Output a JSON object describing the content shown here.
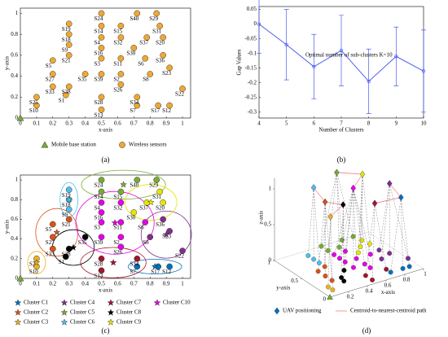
{
  "chart_data": [
    {
      "type": "scatter",
      "caption": "(a)",
      "xlabel": "x-axis",
      "ylabel": "y-axis",
      "xlim": [
        0,
        1.05
      ],
      "ylim": [
        0,
        1.05
      ],
      "xticks": [
        0,
        0.1,
        0.2,
        0.3,
        0.4,
        0.5,
        0.6,
        0.7,
        0.8,
        0.9,
        1
      ],
      "yticks": [
        0,
        0.2,
        0.4,
        0.6,
        0.8,
        1
      ],
      "series": [
        {
          "name": "Mobile base station",
          "color": "#77ac30",
          "marker": "triangle",
          "x": [
            0
          ],
          "y": [
            0
          ]
        },
        {
          "name": "Wireless sensors",
          "color": "#f0a830",
          "marker": "circle",
          "x": [
            0.28,
            0.62,
            0.5,
            0.5,
            0.2,
            0.77,
            0.72,
            0.8,
            0.3,
            0.1,
            0.62,
            0.92,
            0.5,
            0.5,
            0.62,
            0.5,
            0.85,
            0.3,
            0.3,
            0.88,
            0.3,
            1.0,
            0.92,
            0.5,
            0.1,
            0.62,
            0.2,
            0.5,
            0.84,
            0.7,
            0.86,
            0.62,
            0.2,
            0.72,
            0.4,
            0.88,
            0.78,
            0.3,
            0.5,
            0.72
          ],
          "y": [
            0.22,
            0.42,
            0.57,
            0.77,
            0.55,
            0.57,
            0.12,
            0.42,
            0.7,
            0.12,
            0.57,
            0.12,
            0.08,
            0.88,
            0.88,
            0.67,
            0.12,
            0.8,
            0.9,
            0.77,
            0.6,
            0.28,
            0.48,
            1.0,
            0.2,
            0.32,
            0.42,
            0.2,
            1.0,
            0.67,
            0.88,
            0.77,
            0.3,
            0.2,
            0.42,
            0.6,
            0.77,
            0.3,
            0.42,
            1.0
          ],
          "labels": [
            "S1",
            "S2",
            "S3",
            "S4",
            "S5",
            "S6",
            "S7",
            "S8",
            "S9",
            "S10",
            "S11",
            "S12",
            "S13",
            "S14",
            "S15",
            "S16",
            "S17",
            "S18",
            "S19",
            "S20",
            "S21",
            "S22",
            "S23",
            "S24",
            "S25",
            "S26",
            "S27",
            "S28",
            "S29",
            "S30",
            "S31",
            "S32",
            "S33",
            "S34",
            "S35",
            "S36",
            "S37",
            "S38",
            "S39",
            "S40"
          ]
        }
      ]
    },
    {
      "type": "errorbar",
      "caption": "(b)",
      "xlabel": "Number of Clusters",
      "ylabel": "Gap Values",
      "annotation": "Optimal number of sub-clusters K=10",
      "color": "#4a5cf0",
      "xlim": [
        4,
        10
      ],
      "ylim": [
        -0.32,
        0.06
      ],
      "xticks": [
        4,
        5,
        6,
        7,
        8,
        9,
        10
      ],
      "yticks": [
        -0.3,
        -0.25,
        -0.2,
        -0.15,
        -0.1,
        -0.05,
        0,
        0.05
      ],
      "x": [
        4,
        5,
        6,
        7,
        8,
        9,
        10
      ],
      "values": [
        0,
        -0.07,
        -0.145,
        -0.09,
        -0.195,
        -0.11,
        -0.16
      ],
      "errors": [
        0.1,
        0.12,
        0.11,
        0.12,
        0.11,
        0.1,
        0.14
      ]
    },
    {
      "type": "scatter",
      "caption": "(c)",
      "xlabel": "x-axis",
      "ylabel": "y-axis",
      "clusters": true,
      "xlim": [
        0,
        1.05
      ],
      "ylim": [
        0,
        1.05
      ],
      "xticks": [
        0,
        0.1,
        0.2,
        0.3,
        0.4,
        0.5,
        0.6,
        0.7,
        0.8,
        0.9,
        1
      ],
      "yticks": [
        0,
        0.2,
        0.4,
        0.6,
        0.8,
        1
      ],
      "base_station": {
        "x": 0,
        "y": 0,
        "color": "#77ac30"
      },
      "series": [
        {
          "name": "Cluster C1",
          "color": "#0072bd",
          "x": [
            0.72,
            0.85,
            0.92
          ],
          "y": [
            0.12,
            0.12,
            0.12
          ],
          "labels": [
            "S7",
            "S17",
            "S12"
          ]
        },
        {
          "name": "Cluster C2",
          "color": "#d95319",
          "x": [
            0.2,
            0.2,
            0.2,
            0.3
          ],
          "y": [
            0.55,
            0.42,
            0.3,
            0.6
          ],
          "labels": [
            "S5",
            "S27",
            "S33",
            "S21"
          ]
        },
        {
          "name": "Cluster C3",
          "color": "#edb120",
          "x": [
            0.1,
            0.1
          ],
          "y": [
            0.2,
            0.12
          ],
          "labels": [
            "S25",
            "S10"
          ]
        },
        {
          "name": "Cluster C4",
          "color": "#7e2f8e",
          "x": [
            0.88,
            0.92,
            0.8,
            1.0
          ],
          "y": [
            0.6,
            0.48,
            0.42,
            0.28
          ],
          "labels": [
            "S36",
            "S23",
            "S8",
            "S22"
          ]
        },
        {
          "name": "Cluster C5",
          "color": "#77ac30",
          "x": [
            0.5,
            0.72,
            0.84,
            0.5,
            0.62
          ],
          "y": [
            1.0,
            1.0,
            1.0,
            0.88,
            0.88
          ],
          "labels": [
            "S24",
            "S40",
            "S29",
            "S14",
            "S15"
          ]
        },
        {
          "name": "Cluster C6",
          "color": "#4dbeee",
          "x": [
            0.3,
            0.3,
            0.3
          ],
          "y": [
            0.9,
            0.8,
            0.7
          ],
          "labels": [
            "S19",
            "S18",
            "S9"
          ]
        },
        {
          "name": "Cluster C7",
          "color": "#a2142f",
          "x": [
            0.5,
            0.5,
            0.72
          ],
          "y": [
            0.2,
            0.08,
            0.2
          ],
          "labels": [
            "S28",
            "S13",
            "S34"
          ]
        },
        {
          "name": "Cluster C8",
          "color": "#000000",
          "x": [
            0.28,
            0.3,
            0.4
          ],
          "y": [
            0.22,
            0.3,
            0.42
          ],
          "labels": [
            "S1",
            "S38",
            "S35"
          ]
        },
        {
          "name": "Cluster C9",
          "color": "#e6e600",
          "x": [
            0.86,
            0.78,
            0.88,
            0.7
          ],
          "y": [
            0.88,
            0.77,
            0.77,
            0.67
          ],
          "labels": [
            "S31",
            "S37",
            "S20",
            "S30"
          ]
        },
        {
          "name": "Cluster C10",
          "color": "#e600e6",
          "x": [
            0.5,
            0.62,
            0.5,
            0.5,
            0.62,
            0.77,
            0.5,
            0.62,
            0.62
          ],
          "y": [
            0.77,
            0.77,
            0.67,
            0.57,
            0.57,
            0.57,
            0.42,
            0.42,
            0.32
          ],
          "labels": [
            "S4",
            "S32",
            "S16",
            "S3",
            "S11",
            "S6",
            "S39",
            "S2",
            "S26"
          ]
        }
      ]
    },
    {
      "type": "scatter3d",
      "caption": "(d)",
      "xlabel": "x-axis",
      "ylabel": "y-axis",
      "zlabel": "z-axis",
      "xticks": [
        0.2,
        0.4,
        0.6,
        0.8,
        1
      ],
      "yticks": [
        0,
        0.5,
        1
      ],
      "zticks": [
        0,
        0.5,
        1
      ],
      "uav_altitude": 1,
      "uav_label": "UAV positioning",
      "path_label": "Centroid-to-nearest-centroid path",
      "path_color": "#f08080"
    }
  ]
}
